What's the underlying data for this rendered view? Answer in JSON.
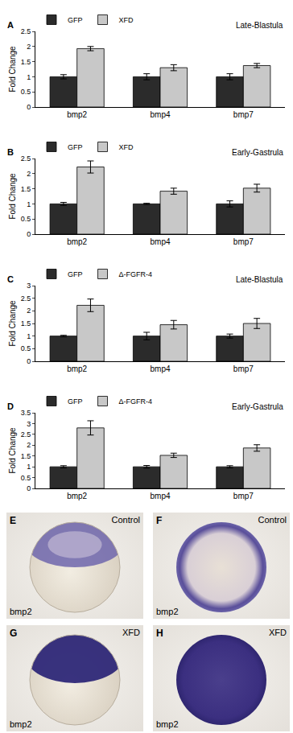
{
  "chart_data": [
    {
      "type": "bar",
      "panel_label": "A",
      "annotation": "Late-Blastula",
      "y_label": "Fold Change",
      "categories": [
        "bmp2",
        "bmp4",
        "bmp7"
      ],
      "series": [
        {
          "name": "GFP",
          "color": "#2b2b2b",
          "values": [
            1,
            1,
            1
          ],
          "error": [
            0.07,
            0.1,
            0.1
          ]
        },
        {
          "name": "XFD",
          "color": "#c8c8c8",
          "values": [
            1.93,
            1.3,
            1.37
          ],
          "error": [
            0.07,
            0.1,
            0.07
          ]
        }
      ],
      "ylim": [
        0,
        2.5
      ],
      "yticks": [
        0,
        0.5,
        1,
        1.5,
        2,
        2.5
      ],
      "legend": "top left",
      "grid": false
    },
    {
      "type": "bar",
      "panel_label": "B",
      "annotation": "Early-Gastrula",
      "y_label": "Fold Change",
      "categories": [
        "bmp2",
        "bmp4",
        "bmp7"
      ],
      "series": [
        {
          "name": "GFP",
          "color": "#2b2b2b",
          "values": [
            1,
            1,
            1
          ],
          "error": [
            0.05,
            0.02,
            0.1
          ]
        },
        {
          "name": "XFD",
          "color": "#c8c8c8",
          "values": [
            2.22,
            1.42,
            1.52
          ],
          "error": [
            0.2,
            0.1,
            0.13
          ]
        }
      ],
      "ylim": [
        0,
        2.5
      ],
      "yticks": [
        0,
        0.5,
        1,
        1.5,
        2,
        2.5
      ],
      "legend": "top left",
      "grid": false
    },
    {
      "type": "bar",
      "panel_label": "C",
      "annotation": "Late-Blastula",
      "y_label": "Fold Change",
      "categories": [
        "bmp2",
        "bmp4",
        "bmp7"
      ],
      "series": [
        {
          "name": "GFP",
          "color": "#2b2b2b",
          "values": [
            1,
            1,
            1
          ],
          "error": [
            0.03,
            0.15,
            0.08
          ]
        },
        {
          "name": "Δ-FGFR-4",
          "color": "#c8c8c8",
          "values": [
            2.22,
            1.45,
            1.5
          ],
          "error": [
            0.25,
            0.17,
            0.2
          ]
        }
      ],
      "ylim": [
        0,
        3
      ],
      "yticks": [
        0,
        0.5,
        1,
        1.5,
        2,
        2.5,
        3
      ],
      "legend": "top left",
      "grid": false
    },
    {
      "type": "bar",
      "panel_label": "D",
      "annotation": "Early-Gastrula",
      "y_label": "Fold Change",
      "categories": [
        "bmp2",
        "bmp4",
        "bmp7"
      ],
      "series": [
        {
          "name": "GFP",
          "color": "#2b2b2b",
          "values": [
            1,
            1,
            1
          ],
          "error": [
            0.05,
            0.06,
            0.05
          ]
        },
        {
          "name": "Δ-FGFR-4",
          "color": "#c8c8c8",
          "values": [
            2.8,
            1.53,
            1.87
          ],
          "error": [
            0.33,
            0.1,
            0.15
          ]
        }
      ],
      "ylim": [
        0,
        3.5
      ],
      "yticks": [
        0,
        0.5,
        1,
        1.5,
        2,
        2.5,
        3,
        3.5
      ],
      "legend": "top left",
      "grid": false
    }
  ],
  "images": [
    {
      "panel_label": "E",
      "condition": "Control",
      "gene": "bmp2"
    },
    {
      "panel_label": "F",
      "condition": "Control",
      "gene": "bmp2"
    },
    {
      "panel_label": "G",
      "condition": "XFD",
      "gene": "bmp2"
    },
    {
      "panel_label": "H",
      "condition": "XFD",
      "gene": "bmp2"
    }
  ]
}
